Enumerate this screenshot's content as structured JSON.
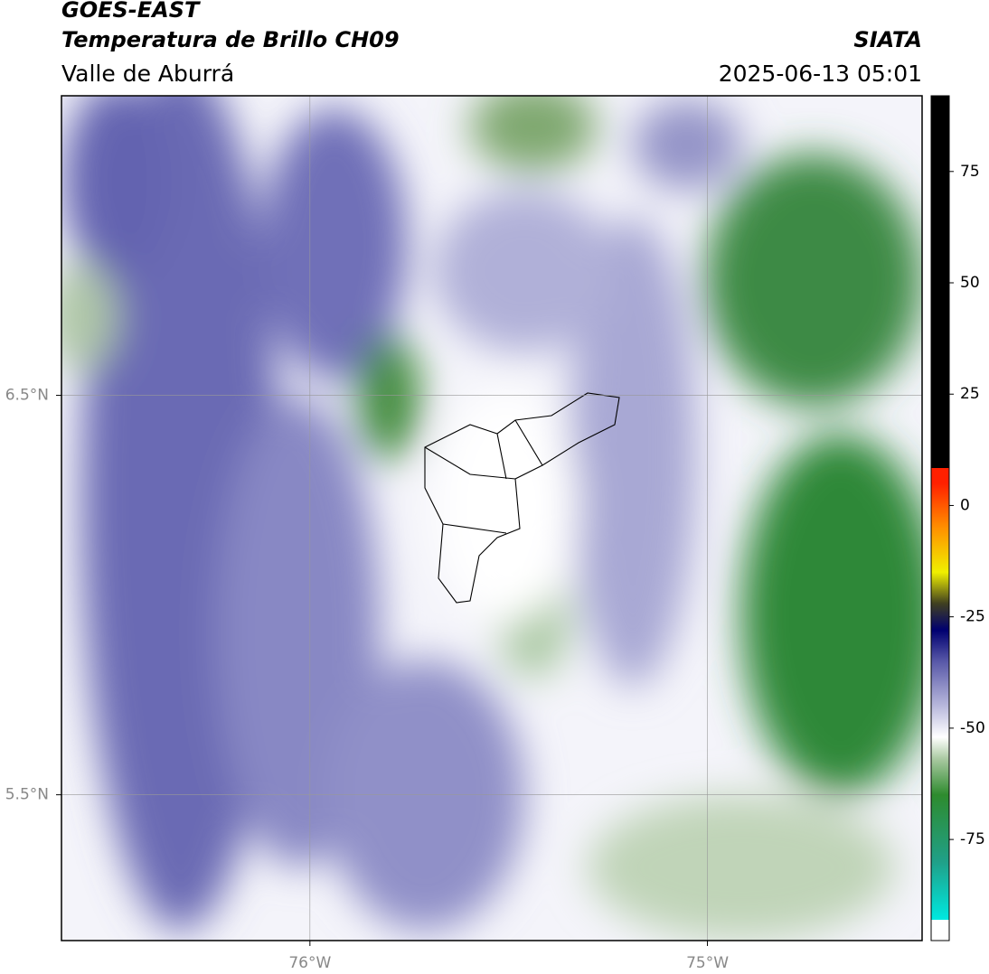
{
  "header": {
    "title": "GOES-EAST",
    "subtitle": "Temperatura de Brillo CH09",
    "region": "Valle de Aburrá",
    "brand": "SIATA",
    "datetime": "2025-06-13 05:01"
  },
  "map": {
    "xlim": [
      -76.625,
      -74.46
    ],
    "ylim": [
      5.135,
      7.25
    ],
    "xticks": [
      {
        "value": -76,
        "label": "76°W"
      },
      {
        "value": -75,
        "label": "75°W"
      }
    ],
    "yticks": [
      {
        "value": 6.5,
        "label": "6.5°N"
      },
      {
        "value": 5.5,
        "label": "5.5°N"
      }
    ],
    "grid": true
  },
  "colorbar": {
    "lim": [
      -97.7,
      92
    ],
    "ticks": [
      75,
      50,
      25,
      0,
      -25,
      -50,
      -75
    ],
    "stops": [
      {
        "value": -97.7,
        "color": "#ffffff"
      },
      {
        "value": -93,
        "color": "#ffffff"
      },
      {
        "value": -93,
        "color": "#00e8e0"
      },
      {
        "value": -80,
        "color": "#20a088"
      },
      {
        "value": -65,
        "color": "#2e8b2e"
      },
      {
        "value": -57,
        "color": "#a8c8a0"
      },
      {
        "value": -52,
        "color": "#ffffff"
      },
      {
        "value": -45,
        "color": "#b8b8dc"
      },
      {
        "value": -35,
        "color": "#5858a8"
      },
      {
        "value": -28,
        "color": "#000070"
      },
      {
        "value": -22,
        "color": "#404020"
      },
      {
        "value": -15,
        "color": "#f0f000"
      },
      {
        "value": -5,
        "color": "#ff9000"
      },
      {
        "value": 5,
        "color": "#ff2000"
      },
      {
        "value": 8.4,
        "color": "#ff2000"
      },
      {
        "value": 8.4,
        "color": "#000000"
      },
      {
        "value": 92,
        "color": "#000000"
      }
    ]
  }
}
